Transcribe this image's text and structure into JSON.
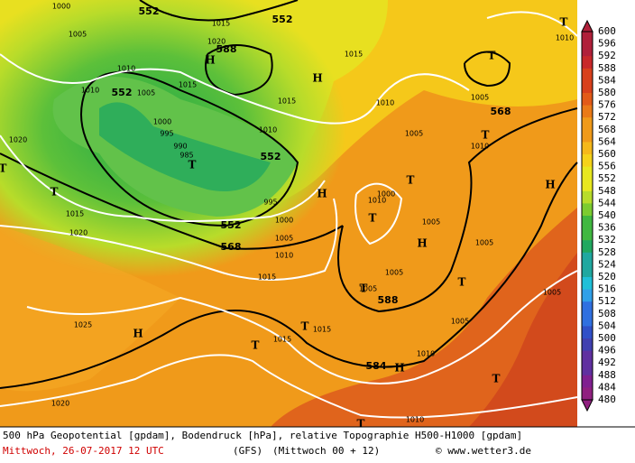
{
  "map": {
    "contour_labels": [
      "552",
      "552",
      "552",
      "552",
      "552",
      "568",
      "568",
      "588",
      "588",
      "584"
    ],
    "pressure_labels": [
      "1000",
      "1005",
      "1010",
      "1015",
      "1020",
      "1010",
      "1005",
      "1015",
      "1000",
      "995",
      "990",
      "985",
      "1015",
      "1010",
      "1015",
      "1010",
      "1005",
      "1005",
      "1010",
      "1020",
      "1015",
      "1020",
      "1015",
      "1000",
      "1005",
      "1010",
      "1000",
      "1010",
      "1005",
      "1005",
      "1005",
      "1005",
      "1005",
      "1005",
      "1025",
      "1015",
      "1015",
      "1010",
      "1020",
      "1010",
      "1010",
      "995"
    ],
    "symbols": [
      "T",
      "T",
      "T",
      "T",
      "T",
      "T",
      "T",
      "T",
      "T",
      "T",
      "T",
      "T",
      "T",
      "T",
      "H",
      "H",
      "H",
      "H",
      "H",
      "H",
      "H"
    ]
  },
  "colorbar": {
    "labels": [
      600,
      596,
      592,
      588,
      584,
      580,
      576,
      572,
      568,
      564,
      560,
      556,
      552,
      548,
      544,
      540,
      536,
      532,
      528,
      524,
      520,
      516,
      512,
      508,
      504,
      500,
      496,
      492,
      488,
      484,
      480
    ]
  },
  "footer": {
    "line1": "500 hPa Geopotential [gpdam], Bodendruck [hPa], relative Topographie H500-H1000 [gpdam]",
    "date": "Mittwoch, 26-07-2017  12 UTC",
    "model": "(GFS)",
    "run": "(Mittwoch 00 + 12)",
    "credit": "© www.wetter3.de"
  }
}
